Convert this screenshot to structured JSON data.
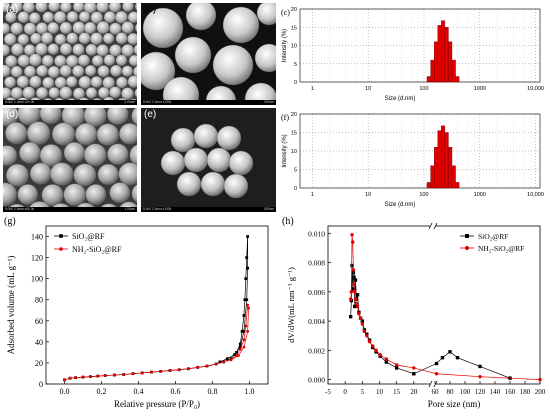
{
  "panels": {
    "a": {
      "label": "(a)",
      "info": "5.0kV 2.0mm x20.0k",
      "scale": "2.00um"
    },
    "b": {
      "label": "(b)",
      "info": "5.0kV 2.0mm x100k",
      "scale": "500nm"
    },
    "d": {
      "label": "(d)",
      "info": "5.0kV 2.0mm x50.0k",
      "scale": "1.00um"
    },
    "e": {
      "label": "(e)",
      "info": "5.0kV 2.0mm x100k",
      "scale": "500nm"
    }
  },
  "colors": {
    "bar_red": "#e00000",
    "series1": "#000000",
    "series2": "#e00000"
  },
  "chart_data": [
    {
      "panel": "(c)",
      "type": "bar",
      "xlabel": "Size (d.nm)",
      "ylabel": "Intensity (%)",
      "x_scale": "log",
      "xlim": [
        0.6,
        12000
      ],
      "x_ticks": [
        "1",
        "10",
        "100",
        "1000",
        "10,000"
      ],
      "x_tick_values": [
        1,
        10,
        100,
        1000,
        10000
      ],
      "ylim": [
        0,
        20
      ],
      "y_ticks": [
        "0",
        "5",
        "10",
        "15",
        "20"
      ],
      "x": [
        122,
        142,
        164,
        190,
        220,
        255,
        295,
        342,
        396
      ],
      "values": [
        1.5,
        6.0,
        11.0,
        15.5,
        16.8,
        15.0,
        11.0,
        6.0,
        1.5
      ]
    },
    {
      "panel": "(f)",
      "type": "bar",
      "xlabel": "Size (d.nm)",
      "ylabel": "Intensity (%)",
      "x_scale": "log",
      "xlim": [
        0.6,
        12000
      ],
      "x_ticks": [
        "1",
        "10",
        "100",
        "1000",
        "10,000"
      ],
      "x_tick_values": [
        1,
        10,
        100,
        1000,
        10000
      ],
      "ylim": [
        0,
        20
      ],
      "y_ticks": [
        "0",
        "5",
        "10",
        "15",
        "20"
      ],
      "x": [
        122,
        142,
        164,
        190,
        220,
        255,
        295,
        342,
        396
      ],
      "values": [
        1.5,
        6.0,
        11.0,
        15.5,
        16.8,
        15.0,
        11.0,
        6.0,
        1.5
      ]
    },
    {
      "panel": "(g)",
      "type": "line",
      "xlabel": "Relative pressure (P/P₀)",
      "ylabel": "Adsorbed volume (mL g⁻¹)",
      "xlim": [
        -0.1,
        1.1
      ],
      "x_ticks": [
        "0.0",
        "0.2",
        "0.4",
        "0.6",
        "0.8",
        "1.0"
      ],
      "x_tick_values": [
        0,
        0.2,
        0.4,
        0.6,
        0.8,
        1.0
      ],
      "ylim": [
        0,
        150
      ],
      "y_ticks": [
        "0",
        "20",
        "40",
        "60",
        "80",
        "100",
        "120",
        "140"
      ],
      "y_tick_values": [
        0,
        20,
        40,
        60,
        80,
        100,
        120,
        140
      ],
      "series": [
        {
          "name": "SiO₂@RF",
          "color": "#000000",
          "marker": "square",
          "x": [
            0.0,
            0.03,
            0.06,
            0.1,
            0.14,
            0.18,
            0.22,
            0.27,
            0.32,
            0.37,
            0.42,
            0.47,
            0.52,
            0.57,
            0.62,
            0.67,
            0.72,
            0.77,
            0.82,
            0.86,
            0.9,
            0.93,
            0.95,
            0.96,
            0.97,
            0.975,
            0.98,
            0.985,
            0.99,
            0.99,
            0.985,
            0.97,
            0.95,
            0.92,
            0.88,
            0.84
          ],
          "y": [
            4,
            5.5,
            6,
            6.5,
            7,
            7.5,
            8,
            8.5,
            9,
            9.8,
            10.5,
            11.3,
            12,
            12.8,
            13.5,
            14.5,
            15.8,
            17,
            19,
            21,
            24,
            30,
            38,
            50,
            65,
            80,
            100,
            120,
            140,
            110,
            80,
            50,
            35,
            28,
            24,
            21
          ]
        },
        {
          "name": "NH₂-SiO₂@RF",
          "color": "#e00000",
          "marker": "circle",
          "x": [
            0.0,
            0.03,
            0.06,
            0.1,
            0.14,
            0.18,
            0.22,
            0.27,
            0.32,
            0.37,
            0.42,
            0.47,
            0.52,
            0.57,
            0.62,
            0.67,
            0.72,
            0.77,
            0.82,
            0.86,
            0.9,
            0.93,
            0.95,
            0.97,
            0.98,
            0.99,
            0.995,
            0.99,
            0.97,
            0.94,
            0.9
          ],
          "y": [
            4,
            5.5,
            6,
            6.5,
            7,
            7.5,
            8,
            8.5,
            9,
            9.8,
            10.5,
            11.3,
            12,
            12.8,
            13.5,
            14.5,
            15.8,
            17,
            19,
            21,
            23,
            27,
            33,
            42,
            55,
            75,
            72,
            50,
            35,
            27,
            23
          ]
        }
      ],
      "legend": "top-left"
    },
    {
      "panel": "(h)",
      "type": "line",
      "xlabel": "Pore size (nm)",
      "ylabel": "dV/dW(mL nm⁻¹ g⁻¹)",
      "x_broken": true,
      "x_break": [
        25,
        60
      ],
      "x_ticks": [
        "-5",
        "0",
        "5",
        "10",
        "15",
        "20",
        "60",
        "80",
        "100",
        "120",
        "140",
        "160",
        "180",
        "200"
      ],
      "x_tick_values": [
        -5,
        0,
        5,
        10,
        15,
        20,
        60,
        80,
        100,
        120,
        140,
        160,
        180,
        200
      ],
      "ylim": [
        -0.0003,
        0.0105
      ],
      "y_ticks": [
        "0.000",
        "0.002",
        "0.004",
        "0.006",
        "0.008",
        "0.010"
      ],
      "y_tick_values": [
        0,
        0.002,
        0.004,
        0.006,
        0.008,
        0.01
      ],
      "series": [
        {
          "name": "SiO₂@RF",
          "color": "#000000",
          "marker": "square",
          "x": [
            1.6,
            1.8,
            2.0,
            2.2,
            2.4,
            2.6,
            2.8,
            3.0,
            3.3,
            3.6,
            4.0,
            4.5,
            5.0,
            5.6,
            6.3,
            7.1,
            8.0,
            9.0,
            10.2,
            12,
            15,
            20,
            62,
            70,
            80,
            90,
            120,
            160
          ],
          "y": [
            0.0043,
            0.0054,
            0.0078,
            0.0062,
            0.0073,
            0.007,
            0.005,
            0.0068,
            0.0055,
            0.0058,
            0.0046,
            0.0042,
            0.004,
            0.0034,
            0.0031,
            0.0027,
            0.0022,
            0.0019,
            0.0016,
            0.0012,
            0.0008,
            0.0004,
            0.0011,
            0.0015,
            0.0019,
            0.0015,
            0.0009,
            0.0001
          ]
        },
        {
          "name": "NH₂-SiO₂@RF",
          "color": "#e00000",
          "marker": "circle",
          "x": [
            1.6,
            1.8,
            2.0,
            2.2,
            2.4,
            2.6,
            2.8,
            3.0,
            3.3,
            3.6,
            4.0,
            4.5,
            5.0,
            5.6,
            6.3,
            7.1,
            8.0,
            9.0,
            10.2,
            12,
            15,
            20,
            62,
            120,
            200
          ],
          "y": [
            0.0055,
            0.006,
            0.0099,
            0.0094,
            0.0075,
            0.0065,
            0.006,
            0.0055,
            0.0052,
            0.005,
            0.0045,
            0.0042,
            0.0038,
            0.0033,
            0.003,
            0.0026,
            0.0023,
            0.002,
            0.0017,
            0.0014,
            0.001,
            0.0008,
            0.0004,
            0.0002,
            0.0
          ]
        }
      ],
      "legend": "top-right"
    }
  ],
  "labels": {
    "c": "(c)",
    "f": "(f)",
    "g": "(g)",
    "h": "(h)"
  }
}
